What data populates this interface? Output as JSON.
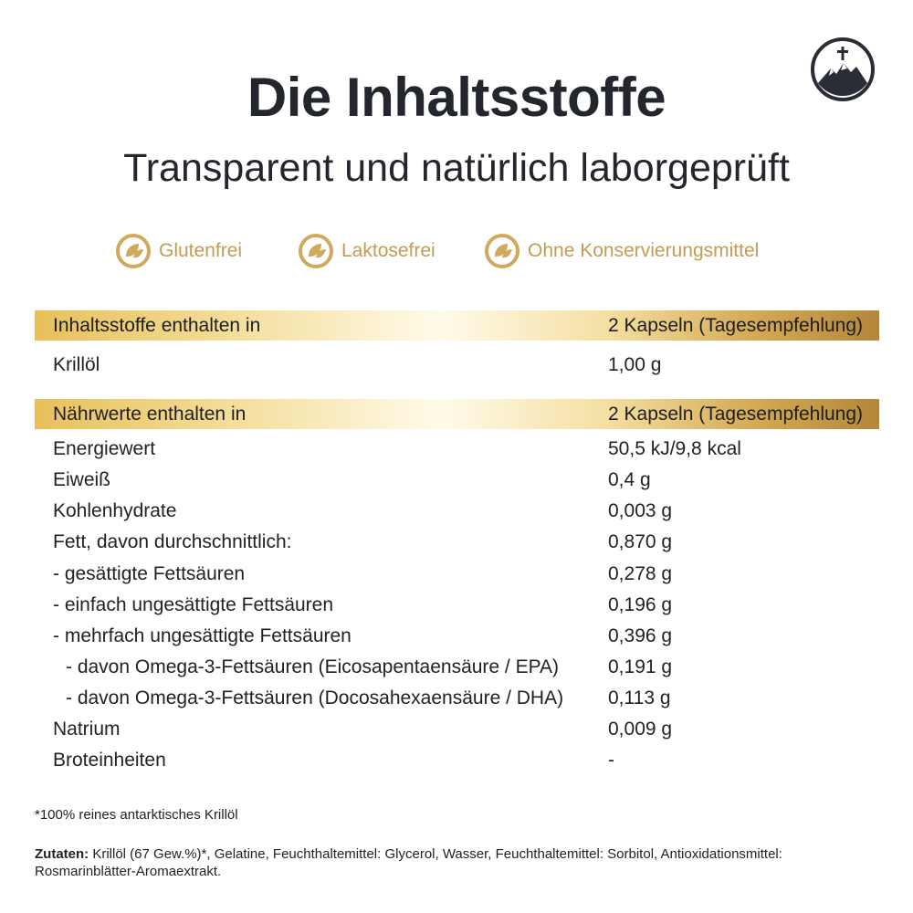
{
  "header": {
    "title": "Die Inhaltsstoffe",
    "subtitle": "Transparent und natürlich laborgeprüft"
  },
  "badges": [
    "Glutenfrei",
    "Laktosefrei",
    "Ohne Konservierungsmittel"
  ],
  "tables": [
    {
      "header": [
        "Inhaltsstoffe enthalten in",
        "2 Kapseln (Tagesempfehlung)"
      ],
      "rows": [
        [
          "Krillöl",
          "1,00 g"
        ]
      ]
    },
    {
      "header": [
        "Nährwerte enthalten in",
        "2 Kapseln (Tagesempfehlung)"
      ],
      "rows": [
        [
          "Energiewert",
          "50,5 kJ/9,8 kcal"
        ],
        [
          "Eiweiß",
          "0,4 g"
        ],
        [
          "Kohlenhydrate",
          "0,003 g"
        ],
        [
          "Fett, davon durchschnittlich:",
          "0,870 g"
        ],
        [
          "- gesättigte Fettsäuren",
          "0,278 g"
        ],
        [
          "- einfach ungesättigte Fettsäuren",
          "0,196 g"
        ],
        [
          "- mehrfach ungesättigte Fettsäuren",
          "0,396 g"
        ],
        [
          "- davon Omega-3-Fettsäuren (Eicosapentaensäure / EPA)",
          "0,191 g"
        ],
        [
          "- davon Omega-3-Fettsäuren (Docosahexaensäure / DHA)",
          "0,113 g"
        ],
        [
          "Natrium",
          "0,009 g"
        ],
        [
          "Broteinheiten",
          "-"
        ]
      ]
    }
  ],
  "footnote": "*100% reines antarktisches Krillöl",
  "ingredients": {
    "label": "Zutaten:",
    "text": "Krillöl (67 Gew.%)*, Gelatine, Feuchthaltemittel: Glycerol, Wasser, Feuchthaltemittel: Sorbitol, Antioxidationsmittel: Rosmarinblätter-Aromaextrakt."
  }
}
